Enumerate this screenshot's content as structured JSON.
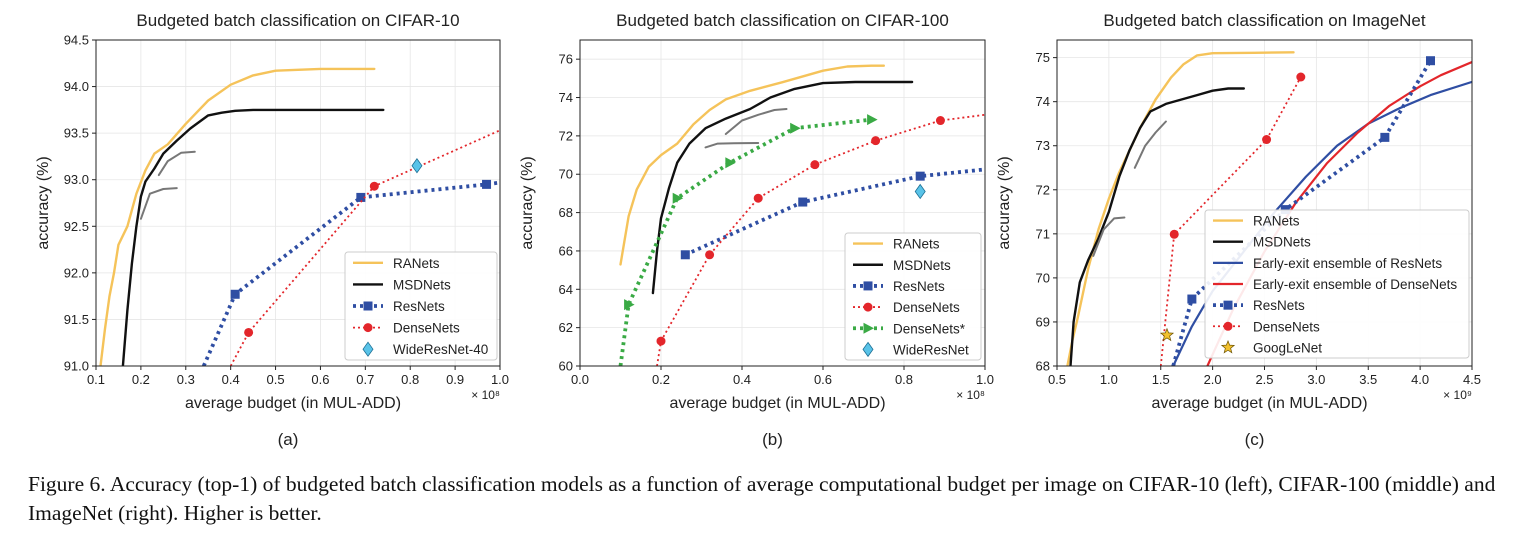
{
  "caption": "Figure 6. Accuracy (top-1) of budgeted batch classification models as a function of average computational budget per image on CIFAR-10 (left), CIFAR-100 (middle) and ImageNet (right). Higher is better.",
  "colors": {
    "ranets": "#f5c35a",
    "msdnets": "#111111",
    "resnets": "#2f4ea3",
    "densenets": "#e3262b",
    "densenets_star": "#3aaa45",
    "wide": "#59c3e8",
    "ee_resnets": "#2f4ea3",
    "ee_densenets": "#e3262b",
    "googlenet": "#f2c12e",
    "grey": "#777777"
  },
  "chart_data": [
    {
      "type": "line",
      "sub_label": "(a)",
      "title": "Budgeted batch classification on CIFAR-10",
      "xlabel": "average budget (in MUL-ADD)",
      "ylabel": "accuracy (%)",
      "x_exponent": "× 10⁸",
      "xlim": [
        0.1,
        1.0
      ],
      "ylim": [
        91.0,
        94.5
      ],
      "xticks": [
        "0.1",
        "0.2",
        "0.3",
        "0.4",
        "0.5",
        "0.6",
        "0.7",
        "0.8",
        "0.9",
        "1.0"
      ],
      "yticks": [
        "91.0",
        "91.5",
        "92.0",
        "92.5",
        "93.0",
        "93.5",
        "94.0",
        "94.5"
      ],
      "grid": true,
      "legend_position": "bottom-right",
      "legend": [
        "RANets",
        "MSDNets",
        "ResNets",
        "DenseNets",
        "WideResNet-40"
      ],
      "series": [
        {
          "name": "RANets",
          "style": "ranets",
          "x": [
            0.11,
            0.12,
            0.13,
            0.14,
            0.15,
            0.17,
            0.19,
            0.21,
            0.23,
            0.26,
            0.3,
            0.35,
            0.4,
            0.45,
            0.5,
            0.55,
            0.6,
            0.65,
            0.7,
            0.72
          ],
          "y": [
            91.0,
            91.4,
            91.75,
            92.0,
            92.3,
            92.5,
            92.85,
            93.1,
            93.28,
            93.38,
            93.6,
            93.85,
            94.02,
            94.12,
            94.17,
            94.18,
            94.19,
            94.19,
            94.19,
            94.19
          ]
        },
        {
          "name": "MSDNets",
          "style": "msdnets",
          "x": [
            0.16,
            0.17,
            0.18,
            0.19,
            0.2,
            0.21,
            0.23,
            0.25,
            0.28,
            0.31,
            0.35,
            0.38,
            0.41,
            0.45,
            0.5,
            0.6,
            0.7,
            0.74
          ],
          "y": [
            91.0,
            91.6,
            92.1,
            92.5,
            92.82,
            92.98,
            93.12,
            93.28,
            93.42,
            93.55,
            93.69,
            93.72,
            93.74,
            93.75,
            93.75,
            93.75,
            93.75,
            93.75
          ]
        },
        {
          "name": "ResNets",
          "style": "resnets",
          "x": [
            0.34,
            0.41,
            0.69,
            0.97,
            1.0
          ],
          "y": [
            91.0,
            91.77,
            92.81,
            92.95,
            92.97
          ],
          "markers": [
            [
              0.41,
              91.77
            ],
            [
              0.69,
              92.81
            ],
            [
              0.97,
              92.95
            ]
          ]
        },
        {
          "name": "DenseNets",
          "style": "densenets",
          "x": [
            0.4,
            0.44,
            0.72,
            1.0
          ],
          "y": [
            91.0,
            91.36,
            92.93,
            93.53
          ],
          "markers": [
            [
              0.44,
              91.36
            ],
            [
              0.72,
              92.93
            ]
          ]
        },
        {
          "name": "WideResNet-40",
          "style": "wide",
          "x": [
            0.815
          ],
          "y": [
            93.15
          ],
          "markers": [
            [
              0.815,
              93.15
            ]
          ]
        },
        {
          "name": "",
          "style": "grey",
          "x": [
            0.2,
            0.22,
            0.25,
            0.28
          ],
          "y": [
            92.58,
            92.85,
            92.9,
            92.91
          ]
        },
        {
          "name": "",
          "style": "grey",
          "x": [
            0.24,
            0.26,
            0.29,
            0.32
          ],
          "y": [
            93.05,
            93.2,
            93.29,
            93.3
          ]
        }
      ]
    },
    {
      "type": "line",
      "sub_label": "(b)",
      "title": "Budgeted batch classification on CIFAR-100",
      "xlabel": "average budget (in MUL-ADD)",
      "ylabel": "accuracy (%)",
      "x_exponent": "× 10⁸",
      "xlim": [
        0.0,
        1.0
      ],
      "ylim": [
        60,
        77
      ],
      "xticks": [
        "0.0",
        "0.2",
        "0.4",
        "0.6",
        "0.8",
        "1.0"
      ],
      "yticks": [
        "60",
        "62",
        "64",
        "66",
        "68",
        "70",
        "72",
        "74",
        "76"
      ],
      "grid": true,
      "legend_position": "bottom-right",
      "legend": [
        "RANets",
        "MSDNets",
        "ResNets",
        "DenseNets",
        "DenseNets*",
        "WideResNet"
      ],
      "series": [
        {
          "name": "RANets",
          "style": "ranets",
          "x": [
            0.1,
            0.12,
            0.14,
            0.17,
            0.2,
            0.24,
            0.28,
            0.32,
            0.36,
            0.42,
            0.5,
            0.6,
            0.66,
            0.72,
            0.75
          ],
          "y": [
            65.3,
            67.8,
            69.2,
            70.4,
            71.0,
            71.6,
            72.6,
            73.35,
            73.9,
            74.35,
            74.8,
            75.4,
            75.62,
            75.66,
            75.66
          ]
        },
        {
          "name": "MSDNets",
          "style": "msdnets",
          "x": [
            0.18,
            0.19,
            0.2,
            0.22,
            0.24,
            0.27,
            0.31,
            0.36,
            0.42,
            0.47,
            0.53,
            0.6,
            0.68,
            0.75,
            0.82
          ],
          "y": [
            63.8,
            66.0,
            67.7,
            69.3,
            70.6,
            71.6,
            72.4,
            72.9,
            73.4,
            74.0,
            74.45,
            74.75,
            74.81,
            74.81,
            74.81
          ]
        },
        {
          "name": "ResNets",
          "style": "resnets",
          "x": [
            0.26,
            0.55,
            0.84,
            1.0
          ],
          "y": [
            65.8,
            68.55,
            69.9,
            70.25
          ],
          "markers": [
            [
              0.26,
              65.8
            ],
            [
              0.55,
              68.55
            ],
            [
              0.84,
              69.9
            ]
          ]
        },
        {
          "name": "DenseNets",
          "style": "densenets",
          "x": [
            0.19,
            0.2,
            0.32,
            0.44,
            0.58,
            0.73,
            0.89,
            1.0
          ],
          "y": [
            60.0,
            61.3,
            65.8,
            68.75,
            70.5,
            71.75,
            72.8,
            73.1
          ],
          "markers": [
            [
              0.2,
              61.3
            ],
            [
              0.32,
              65.8
            ],
            [
              0.44,
              68.75
            ],
            [
              0.58,
              70.5
            ],
            [
              0.73,
              71.75
            ],
            [
              0.89,
              72.8
            ]
          ]
        },
        {
          "name": "DenseNets*",
          "style": "densenets_star",
          "x": [
            0.1,
            0.12,
            0.24,
            0.37,
            0.53,
            0.72
          ],
          "y": [
            60.0,
            63.2,
            68.75,
            70.6,
            72.4,
            72.85
          ],
          "markers": [
            [
              0.12,
              63.2
            ],
            [
              0.24,
              68.75
            ],
            [
              0.37,
              70.6
            ],
            [
              0.53,
              72.4
            ],
            [
              0.72,
              72.85
            ]
          ]
        },
        {
          "name": "WideResNet",
          "style": "wide",
          "x": [
            0.84
          ],
          "y": [
            69.1
          ],
          "markers": [
            [
              0.84,
              69.1
            ]
          ]
        },
        {
          "name": "",
          "style": "grey",
          "x": [
            0.31,
            0.34,
            0.38,
            0.44
          ],
          "y": [
            71.4,
            71.6,
            71.62,
            71.63
          ]
        },
        {
          "name": "",
          "style": "grey",
          "x": [
            0.36,
            0.4,
            0.44,
            0.48,
            0.51
          ],
          "y": [
            72.1,
            72.8,
            73.1,
            73.35,
            73.4
          ]
        }
      ]
    },
    {
      "type": "line",
      "sub_label": "(c)",
      "title": "Budgeted batch classification on ImageNet",
      "xlabel": "average budget (in MUL-ADD)",
      "ylabel": "accuracy (%)",
      "x_exponent": "× 10⁹",
      "xlim": [
        0.5,
        4.5
      ],
      "ylim": [
        68,
        75.4
      ],
      "xticks": [
        "0.5",
        "1.0",
        "1.5",
        "2.0",
        "2.5",
        "3.0",
        "3.5",
        "4.0",
        "4.5"
      ],
      "yticks": [
        "68",
        "69",
        "70",
        "71",
        "72",
        "73",
        "74",
        "75"
      ],
      "grid": true,
      "legend_position": "bottom-right",
      "legend": [
        "RANets",
        "MSDNets",
        "Early-exit ensemble of ResNets",
        "Early-exit ensemble of DenseNets",
        "ResNets",
        "DenseNets",
        "GoogLeNet"
      ],
      "series": [
        {
          "name": "RANets",
          "style": "ranets",
          "x": [
            0.6,
            0.65,
            0.7,
            0.8,
            0.9,
            1.0,
            1.1,
            1.3,
            1.45,
            1.6,
            1.72,
            1.85,
            2.0,
            2.4,
            2.78
          ],
          "y": [
            68.0,
            68.6,
            69.1,
            70.2,
            71.1,
            71.8,
            72.4,
            73.4,
            74.05,
            74.55,
            74.85,
            75.05,
            75.1,
            75.11,
            75.12
          ]
        },
        {
          "name": "MSDNets",
          "style": "msdnets",
          "x": [
            0.63,
            0.66,
            0.72,
            0.8,
            0.9,
            1.0,
            1.1,
            1.2,
            1.3,
            1.4,
            1.55,
            1.7,
            1.85,
            2.0,
            2.15,
            2.3
          ],
          "y": [
            68.0,
            69.0,
            69.9,
            70.4,
            70.9,
            71.5,
            72.3,
            72.9,
            73.4,
            73.78,
            73.95,
            74.05,
            74.15,
            74.25,
            74.3,
            74.3
          ]
        },
        {
          "name": "Early-exit ensemble of ResNets",
          "style": "ee_resnets",
          "x": [
            1.62,
            1.8,
            2.0,
            2.3,
            2.6,
            2.9,
            3.2,
            3.5,
            3.8,
            4.1,
            4.5
          ],
          "y": [
            68.0,
            68.9,
            69.7,
            70.6,
            71.5,
            72.3,
            73.0,
            73.5,
            73.85,
            74.15,
            74.45
          ]
        },
        {
          "name": "Early-exit ensemble of DenseNets",
          "style": "ee_densenets",
          "x": [
            1.95,
            2.2,
            2.5,
            2.8,
            3.1,
            3.4,
            3.7,
            4.0,
            4.2,
            4.5
          ],
          "y": [
            68.0,
            69.3,
            70.6,
            71.7,
            72.6,
            73.3,
            73.9,
            74.35,
            74.6,
            74.9
          ]
        },
        {
          "name": "ResNets",
          "style": "resnets",
          "x": [
            1.62,
            1.8,
            2.7,
            3.66,
            4.1
          ],
          "y": [
            68.0,
            69.52,
            71.55,
            73.19,
            74.93
          ],
          "markers": [
            [
              1.8,
              69.52
            ],
            [
              2.7,
              71.55
            ],
            [
              3.66,
              73.19
            ],
            [
              4.1,
              74.93
            ]
          ]
        },
        {
          "name": "DenseNets",
          "style": "densenets",
          "x": [
            1.5,
            1.63,
            2.52,
            2.85
          ],
          "y": [
            68.0,
            70.99,
            73.14,
            74.56
          ],
          "markers": [
            [
              1.63,
              70.99
            ],
            [
              2.52,
              73.14
            ],
            [
              2.85,
              74.56
            ]
          ]
        },
        {
          "name": "GoogLeNet",
          "style": "googlenet",
          "x": [
            1.56
          ],
          "y": [
            68.7
          ],
          "markers": [
            [
              1.56,
              68.7
            ]
          ]
        },
        {
          "name": "",
          "style": "grey",
          "x": [
            0.85,
            0.95,
            1.05,
            1.15
          ],
          "y": [
            70.5,
            71.1,
            71.35,
            71.37
          ]
        },
        {
          "name": "",
          "style": "grey",
          "x": [
            1.25,
            1.35,
            1.45,
            1.55
          ],
          "y": [
            72.5,
            73.0,
            73.3,
            73.55
          ]
        }
      ]
    }
  ]
}
